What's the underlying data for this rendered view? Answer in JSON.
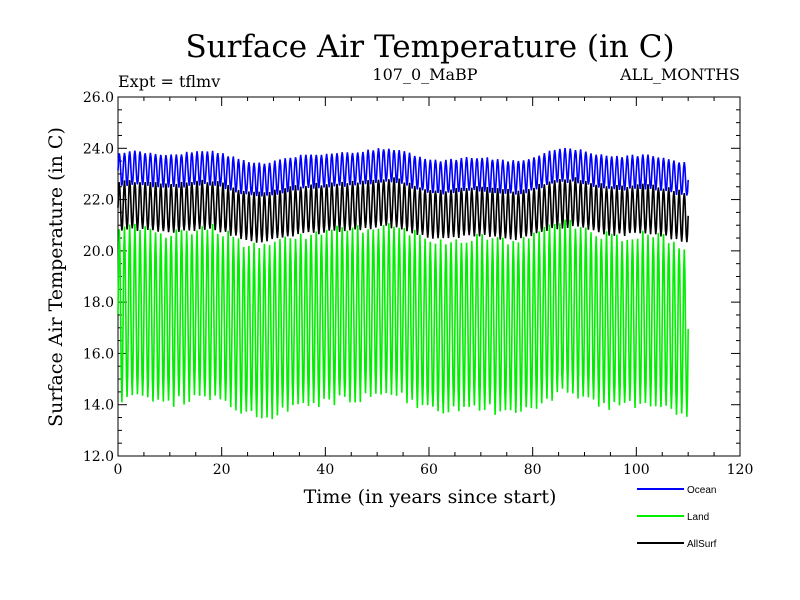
{
  "chart_data": {
    "type": "line",
    "title": "Surface Air Temperature (in C)",
    "subtitle_left": "Expt = tflmv",
    "subtitle_center": "107_0_MaBP",
    "subtitle_right": "ALL_MONTHS",
    "xlabel": "Time (in years since start)",
    "ylabel": "Surface Air Temperature (in C)",
    "xlim": [
      0,
      120
    ],
    "ylim": [
      12,
      26
    ],
    "x_ticks": [
      0,
      20,
      40,
      60,
      80,
      100,
      120
    ],
    "y_ticks": [
      12,
      14,
      16,
      18,
      20,
      22,
      24,
      26
    ],
    "x_tick_labels": [
      "0",
      "20",
      "40",
      "60",
      "80",
      "100",
      "120"
    ],
    "y_tick_labels": [
      "12.0",
      "14.0",
      "16.0",
      "18.0",
      "20.0",
      "22.0",
      "24.0",
      "26.0"
    ],
    "legend_position": "bottom-right, outside plot",
    "x_range_data": [
      0,
      110
    ],
    "series": [
      {
        "name": "Ocean",
        "color": "#0000ff",
        "mean": 23.05,
        "seasonal_max": 24.0,
        "seasonal_min": 22.7
      },
      {
        "name": "Land",
        "color": "#00ee00",
        "mean": 17.3,
        "seasonal_max": 20.6,
        "seasonal_min": 14.0
      },
      {
        "name": "AllSurf",
        "color": "#000000",
        "mean": 21.6,
        "seasonal_max": 22.5,
        "seasonal_min": 20.6
      }
    ]
  }
}
